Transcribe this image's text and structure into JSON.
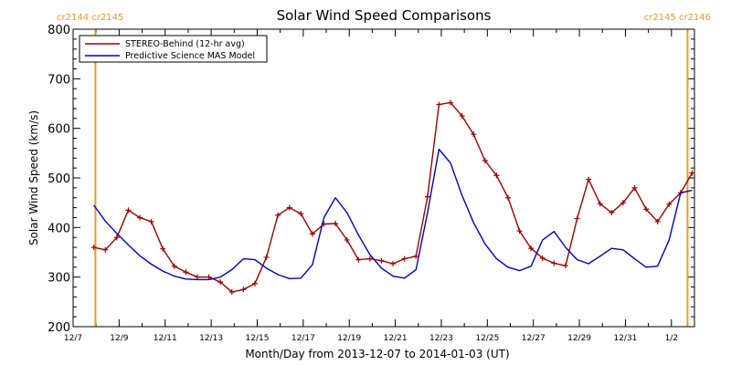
{
  "chart_data": {
    "type": "line",
    "title": "Solar Wind Speed Comparisons",
    "xlabel": "Month/Day from 2013-12-07 to 2014-01-03 (UT)",
    "ylabel": "Solar Wind Speed (km/s)",
    "x_unit": "days since 2013-12-07",
    "xlim": [
      0,
      27
    ],
    "ylim": [
      200,
      800
    ],
    "y_ticks": [
      200,
      300,
      400,
      500,
      600,
      700,
      800
    ],
    "x_ticks": [
      {
        "x": 0,
        "label": "12/7"
      },
      {
        "x": 2,
        "label": "12/9"
      },
      {
        "x": 4,
        "label": "12/11"
      },
      {
        "x": 6,
        "label": "12/13"
      },
      {
        "x": 8,
        "label": "12/15"
      },
      {
        "x": 10,
        "label": "12/17"
      },
      {
        "x": 12,
        "label": "12/19"
      },
      {
        "x": 14,
        "label": "12/21"
      },
      {
        "x": 16,
        "label": "12/23"
      },
      {
        "x": 18,
        "label": "12/25"
      },
      {
        "x": 20,
        "label": "12/27"
      },
      {
        "x": 22,
        "label": "12/29"
      },
      {
        "x": 24,
        "label": "12/31"
      },
      {
        "x": 26,
        "label": "1/2"
      }
    ],
    "carrington_markers": [
      {
        "x": 0.97,
        "label": "cr2144 cr2145",
        "side": "left"
      },
      {
        "x": 26.7,
        "label": "cr2145 cr2146",
        "side": "right"
      }
    ],
    "legend_position": "top-left",
    "series": [
      {
        "name": "STEREO-Behind (12-hr avg)",
        "color": "#a00000",
        "marker": "plus",
        "x": [
          0.9,
          1.4,
          1.9,
          2.4,
          2.9,
          3.4,
          3.9,
          4.4,
          4.9,
          5.4,
          5.9,
          6.4,
          6.9,
          7.4,
          7.9,
          8.4,
          8.9,
          9.4,
          9.9,
          10.4,
          10.9,
          11.4,
          11.9,
          12.4,
          12.9,
          13.4,
          13.9,
          14.4,
          14.9,
          15.4,
          15.9,
          16.4,
          16.9,
          17.4,
          17.9,
          18.4,
          18.9,
          19.4,
          19.9,
          20.4,
          20.9,
          21.4,
          21.9,
          22.4,
          22.9,
          23.4,
          23.9,
          24.4,
          24.9,
          25.4,
          25.9,
          26.4,
          26.9
        ],
        "values": [
          360,
          355,
          380,
          435,
          420,
          412,
          357,
          322,
          310,
          300,
          300,
          290,
          270,
          275,
          287,
          340,
          425,
          440,
          428,
          387,
          407,
          408,
          375,
          335,
          337,
          333,
          327,
          337,
          342,
          462,
          648,
          652,
          625,
          588,
          535,
          505,
          460,
          393,
          358,
          338,
          328,
          323,
          418,
          497,
          448,
          430,
          450,
          480,
          437,
          412,
          447,
          470,
          510
        ]
      },
      {
        "name": "Predictive Science MAS Model",
        "color": "#0000cc",
        "marker": "none",
        "x": [
          0.9,
          1.4,
          1.9,
          2.4,
          2.9,
          3.4,
          3.9,
          4.4,
          4.9,
          5.4,
          5.9,
          6.4,
          6.9,
          7.4,
          7.9,
          8.4,
          8.9,
          9.4,
          9.9,
          10.4,
          10.9,
          11.4,
          11.9,
          12.4,
          12.9,
          13.4,
          13.9,
          14.4,
          14.9,
          15.4,
          15.9,
          16.4,
          16.9,
          17.4,
          17.9,
          18.4,
          18.9,
          19.4,
          19.9,
          20.4,
          20.9,
          21.4,
          21.9,
          22.4,
          22.9,
          23.4,
          23.9,
          24.4,
          24.9,
          25.4,
          25.9,
          26.4,
          26.9
        ],
        "values": [
          445,
          413,
          388,
          365,
          343,
          326,
          312,
          302,
          296,
          295,
          295,
          300,
          315,
          337,
          335,
          318,
          305,
          297,
          298,
          325,
          420,
          460,
          430,
          385,
          345,
          318,
          302,
          298,
          315,
          430,
          558,
          530,
          465,
          410,
          367,
          337,
          320,
          313,
          322,
          375,
          392,
          360,
          335,
          327,
          342,
          358,
          355,
          337,
          320,
          322,
          375,
          470,
          475
        ]
      }
    ]
  }
}
